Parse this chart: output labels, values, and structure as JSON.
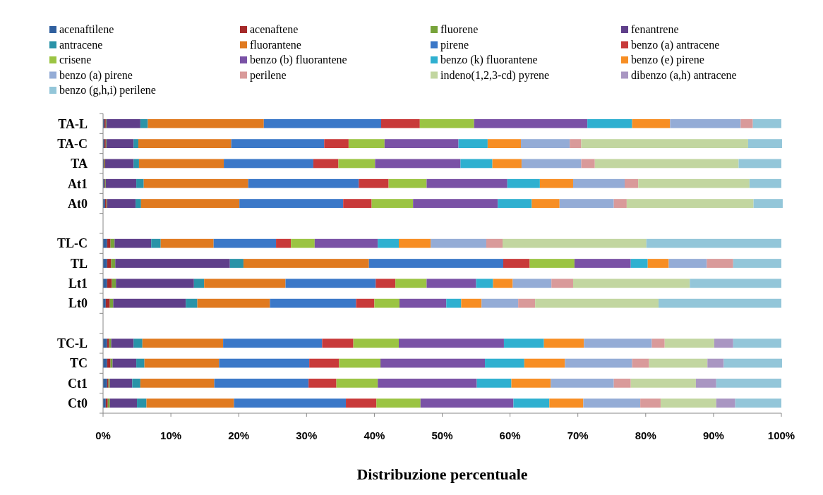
{
  "chart_data": {
    "type": "bar",
    "orientation": "horizontal",
    "stacked": true,
    "xlabel": "Distribuzione percentuale",
    "legend": "top",
    "grid": false,
    "categories": [
      "TA-L",
      "TA-C",
      "TA",
      "At1",
      "At0",
      null,
      "TL-C",
      "TL",
      "Lt1",
      "Lt0",
      null,
      "TC-L",
      "TC",
      "Ct1",
      "Ct0"
    ],
    "xlim": [
      0,
      100
    ],
    "xticks": [
      {
        "value": 0,
        "label": "0%"
      },
      {
        "value": 10,
        "label": "10%"
      },
      {
        "value": 20,
        "label": "20%"
      },
      {
        "value": 30,
        "label": "30%"
      },
      {
        "value": 40,
        "label": "40%"
      },
      {
        "value": 50,
        "label": "50%"
      },
      {
        "value": 60,
        "label": "60%"
      },
      {
        "value": 70,
        "label": "70%"
      },
      {
        "value": 80,
        "label": "80%"
      },
      {
        "value": 90,
        "label": "90%"
      },
      {
        "value": 100,
        "label": "100%"
      }
    ],
    "series": [
      {
        "name": "acenaftilene",
        "color": "#2f5f9e",
        "values": [
          0.2,
          0.2,
          0.1,
          0.2,
          0.3,
          null,
          0.6,
          0.6,
          0.6,
          0.4,
          null,
          0.6,
          0.6,
          0.6,
          0.4
        ]
      },
      {
        "name": "acenaftene",
        "color": "#a52a2a",
        "values": [
          0.2,
          0.2,
          0.1,
          0.1,
          0.2,
          null,
          0.5,
          0.6,
          0.7,
          0.6,
          null,
          0.3,
          0.5,
          0.2,
          0.3
        ]
      },
      {
        "name": "fluorene",
        "color": "#77a33a",
        "values": [
          0.1,
          0.1,
          0.1,
          0.1,
          0.1,
          null,
          0.6,
          0.6,
          0.6,
          0.5,
          null,
          0.3,
          0.3,
          0.2,
          0.3
        ]
      },
      {
        "name": "fenantrene",
        "color": "#5f3f8a",
        "values": [
          5.0,
          4.0,
          4.2,
          4.5,
          4.2,
          null,
          5.4,
          16.9,
          11.5,
          10.7,
          null,
          3.3,
          3.5,
          3.3,
          4.0
        ]
      },
      {
        "name": "antracene",
        "color": "#2a93a8",
        "values": [
          1.1,
          0.7,
          0.8,
          1.1,
          0.8,
          null,
          1.4,
          2.0,
          1.5,
          1.7,
          null,
          1.3,
          1.2,
          1.2,
          1.4
        ]
      },
      {
        "name": "fluorantene",
        "color": "#e07a20",
        "values": [
          17.1,
          13.7,
          12.5,
          15.4,
          14.5,
          null,
          7.8,
          18.5,
          12.0,
          10.7,
          null,
          11.9,
          11.0,
          10.9,
          12.9
        ]
      },
      {
        "name": "pirene",
        "color": "#3b78c8",
        "values": [
          17.3,
          13.7,
          13.2,
          16.3,
          15.3,
          null,
          9.2,
          19.8,
          13.3,
          12.7,
          null,
          14.6,
          13.3,
          13.9,
          16.5
        ]
      },
      {
        "name": "benzo (a) antracene",
        "color": "#c83a3a",
        "values": [
          5.7,
          3.6,
          3.7,
          4.4,
          4.2,
          null,
          2.2,
          3.9,
          2.9,
          2.7,
          null,
          4.6,
          4.4,
          4.1,
          4.5
        ]
      },
      {
        "name": "crisene",
        "color": "#9bc443",
        "values": [
          8.0,
          5.3,
          5.4,
          5.6,
          6.1,
          null,
          3.5,
          6.6,
          4.6,
          3.7,
          null,
          6.7,
          6.1,
          6.1,
          6.5
        ]
      },
      {
        "name": "benzo (b) fluorantene",
        "color": "#7a52a6",
        "values": [
          16.7,
          10.9,
          12.6,
          11.9,
          12.5,
          null,
          9.3,
          8.3,
          7.3,
          6.9,
          null,
          15.5,
          15.4,
          14.6,
          13.7
        ]
      },
      {
        "name": "benzo (k) fluorantene",
        "color": "#2fb0d0",
        "values": [
          6.6,
          4.3,
          4.7,
          4.8,
          5.0,
          null,
          3.1,
          2.5,
          2.5,
          2.2,
          null,
          5.9,
          5.8,
          5.1,
          5.3
        ]
      },
      {
        "name": "benzo (e) pirene",
        "color": "#f78e24",
        "values": [
          5.6,
          4.9,
          4.3,
          4.9,
          4.1,
          null,
          4.7,
          3.1,
          2.9,
          3.0,
          null,
          5.9,
          6.0,
          5.8,
          5.0
        ]
      },
      {
        "name": "benzo (a) pirene",
        "color": "#94acd6",
        "values": [
          10.4,
          7.2,
          8.8,
          7.6,
          8.0,
          null,
          8.2,
          5.6,
          5.7,
          5.4,
          null,
          10.0,
          9.9,
          9.3,
          8.4
        ]
      },
      {
        "name": "perilene",
        "color": "#d99a9a",
        "values": [
          1.8,
          1.7,
          2.0,
          2.0,
          1.9,
          null,
          2.4,
          3.9,
          3.2,
          2.5,
          null,
          1.9,
          2.5,
          2.5,
          3.0
        ]
      },
      {
        "name": "indeno(1,2,3-cd) pyrene",
        "color": "#c2d6a0",
        "values": [
          0,
          24.6,
          21.2,
          16.4,
          18.7,
          null,
          21.2,
          0,
          17.2,
          18.2,
          null,
          7.3,
          8.6,
          9.6,
          8.2
        ]
      },
      {
        "name": "dibenzo (a,h) antracene",
        "color": "#a996c2",
        "values": [
          0,
          0,
          0,
          0,
          0,
          null,
          0,
          0,
          0,
          0,
          null,
          2.8,
          2.4,
          3.0,
          2.8
        ]
      },
      {
        "name": "benzo (g,h,i) perilene",
        "color": "#93c6d9",
        "values": [
          4.2,
          5.0,
          6.3,
          4.7,
          4.3,
          null,
          19.9,
          7.1,
          13.5,
          18.1,
          null,
          7.1,
          8.6,
          9.6,
          6.8
        ]
      }
    ]
  }
}
